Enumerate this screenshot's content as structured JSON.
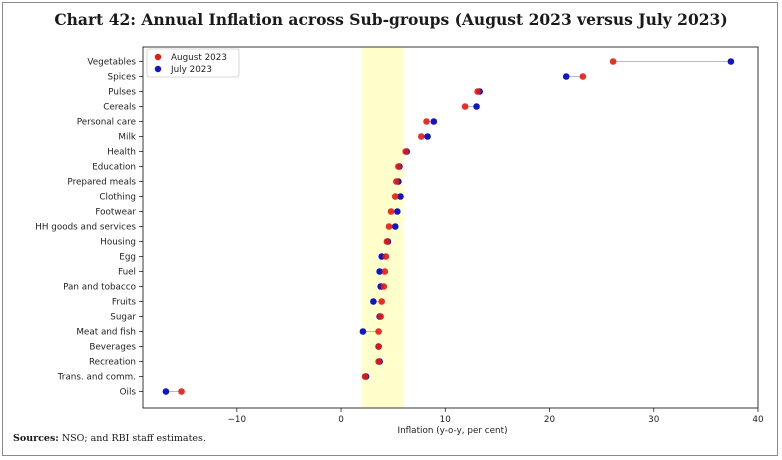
{
  "title": "Chart 42: Annual Inflation across Sub-groups (August 2023 versus July 2023)",
  "source": {
    "label": "Sources:",
    "text": " NSO; and RBI staff estimates."
  },
  "colors": {
    "august": "#e8190f",
    "july": "#1016c8",
    "band": "#ffffcc",
    "connector": "#b8b8cc"
  },
  "chart_data": {
    "type": "scatter",
    "xlabel": "Inflation (y-o-y, per cent)",
    "xlim": [
      -19,
      40
    ],
    "xticks": [
      -10,
      0,
      10,
      20,
      30,
      40
    ],
    "xtick_labels": [
      "−10",
      "0",
      "10",
      "20",
      "30",
      "40"
    ],
    "band": [
      2,
      6
    ],
    "legend_position": "top-left",
    "categories": [
      "Vegetables",
      "Spices",
      "Pulses",
      "Cereals",
      "Personal care",
      "Milk",
      "Health",
      "Education",
      "Prepared meals",
      "Clothing",
      "Footwear",
      "HH goods and services",
      "Housing",
      "Egg",
      "Fuel",
      "Pan and tobacco",
      "Fruits",
      "Sugar",
      "Meat and fish",
      "Beverages",
      "Recreation",
      "Trans. and comm.",
      "Oils"
    ],
    "series": [
      {
        "name": "August 2023",
        "values": [
          26.1,
          23.2,
          13.1,
          11.9,
          8.2,
          7.7,
          6.2,
          5.5,
          5.3,
          5.2,
          4.8,
          4.6,
          4.4,
          4.3,
          4.2,
          4.1,
          3.9,
          3.8,
          3.6,
          3.6,
          3.6,
          2.3,
          -15.3
        ]
      },
      {
        "name": "July 2023",
        "values": [
          37.4,
          21.6,
          13.3,
          13.0,
          8.9,
          8.3,
          6.3,
          5.6,
          5.5,
          5.7,
          5.4,
          5.2,
          4.5,
          3.9,
          3.7,
          3.8,
          3.1,
          3.7,
          2.1,
          3.6,
          3.7,
          2.4,
          -16.8
        ]
      }
    ]
  }
}
